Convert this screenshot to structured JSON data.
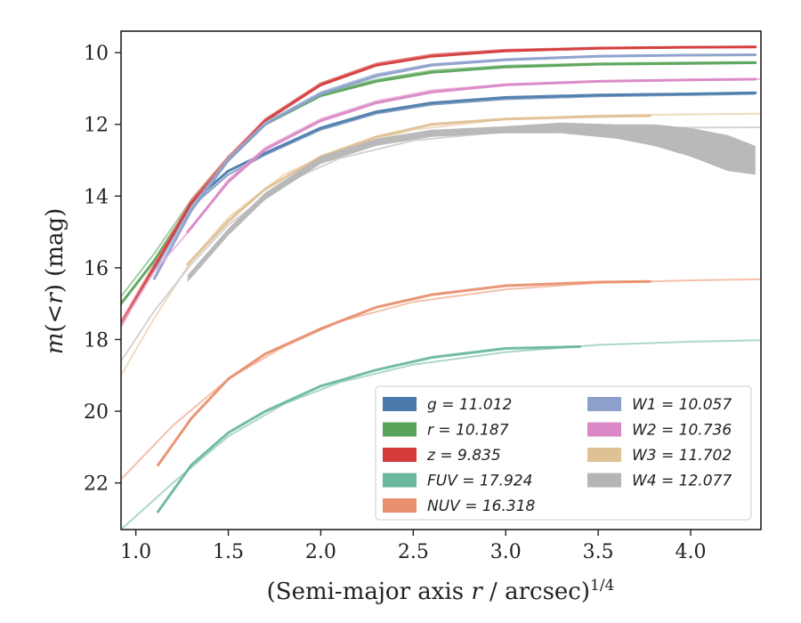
{
  "chart_data": {
    "type": "line",
    "xlabel": "(Semi-major axis r / arcsec)^1/4",
    "ylabel": "m(<r) (mag)",
    "xlim": [
      0.92,
      4.38
    ],
    "ylim": [
      23.3,
      9.4
    ],
    "y_inverted": true,
    "x_ticks": [
      "1.0",
      "1.5",
      "2.0",
      "2.5",
      "3.0",
      "3.5",
      "4.0"
    ],
    "y_ticks": [
      "10",
      "12",
      "14",
      "16",
      "18",
      "20",
      "22"
    ],
    "legend_location": "lower right",
    "legend_columns": 2,
    "series": [
      {
        "name": "g = 11.012",
        "color": "#4c7bab",
        "band_color": "#4c7bab",
        "fit_color": "#6f93bd",
        "x": [
          1.1,
          1.3,
          1.5,
          1.7,
          2.0,
          2.3,
          2.6,
          3.0,
          3.5,
          4.0,
          4.35
        ],
        "y": [
          16.0,
          14.2,
          13.3,
          12.8,
          12.1,
          11.65,
          11.4,
          11.25,
          11.18,
          11.15,
          11.12
        ],
        "fit_y": [
          16.1,
          14.3,
          13.4,
          12.85,
          12.15,
          11.7,
          11.45,
          11.3,
          11.22,
          11.18,
          11.15
        ]
      },
      {
        "name": "r = 10.187",
        "color": "#5aa35a",
        "band_color": "#5aa35a",
        "fit_color": "#8fc48f",
        "x": [
          0.92,
          1.1,
          1.3,
          1.5,
          1.7,
          2.0,
          2.3,
          2.6,
          3.0,
          3.5,
          4.0,
          4.35
        ],
        "y": [
          17.0,
          15.8,
          14.2,
          13.0,
          12.0,
          11.2,
          10.8,
          10.55,
          10.4,
          10.32,
          10.3,
          10.28
        ],
        "fit_y": [
          16.8,
          15.6,
          14.1,
          12.9,
          11.95,
          11.15,
          10.75,
          10.5,
          10.36,
          10.3,
          10.27,
          10.26
        ]
      },
      {
        "name": "z = 9.835",
        "color": "#d33b3b",
        "band_color": "#d33b3b",
        "fit_color": "#e27373",
        "x": [
          0.92,
          1.1,
          1.3,
          1.5,
          1.7,
          2.0,
          2.3,
          2.6,
          3.0,
          3.5,
          4.0,
          4.35
        ],
        "y": [
          17.6,
          16.0,
          14.2,
          13.0,
          11.9,
          10.9,
          10.35,
          10.1,
          9.95,
          9.88,
          9.85,
          9.84
        ],
        "fit_y": [
          17.5,
          15.9,
          14.1,
          12.9,
          11.85,
          10.85,
          10.3,
          10.05,
          9.92,
          9.86,
          9.84,
          9.83
        ]
      },
      {
        "name": "FUV = 17.924",
        "color": "#6cb89f",
        "band_color": "#6cb89f",
        "fit_color": "#9fd0c0",
        "x": [
          1.12,
          1.3,
          1.5,
          1.7,
          2.0,
          2.3,
          2.6,
          3.0,
          3.4
        ],
        "y": [
          22.8,
          21.5,
          20.6,
          20.0,
          19.3,
          18.85,
          18.5,
          18.25,
          18.2
        ],
        "fit_x": [
          0.92,
          1.2,
          1.5,
          1.8,
          2.1,
          2.5,
          3.0,
          3.5,
          4.0,
          4.38
        ],
        "fit_y": [
          23.3,
          22.0,
          20.7,
          19.8,
          19.2,
          18.7,
          18.35,
          18.15,
          18.06,
          18.02
        ]
      },
      {
        "name": "NUV = 16.318",
        "color": "#e8906f",
        "band_color": "#e8906f",
        "fit_color": "#f2b59b",
        "x": [
          1.12,
          1.3,
          1.5,
          1.7,
          2.0,
          2.3,
          2.6,
          3.0,
          3.5,
          3.78
        ],
        "y": [
          21.5,
          20.2,
          19.1,
          18.4,
          17.7,
          17.1,
          16.75,
          16.5,
          16.4,
          16.38
        ],
        "fit_x": [
          0.92,
          1.2,
          1.5,
          1.8,
          2.1,
          2.5,
          3.0,
          3.5,
          4.0,
          4.38
        ],
        "fit_y": [
          21.9,
          20.4,
          19.1,
          18.2,
          17.5,
          16.95,
          16.6,
          16.42,
          16.35,
          16.32
        ]
      },
      {
        "name": "W1 = 10.057",
        "color": "#8da0cb",
        "band_color": "#8da0cb",
        "fit_color": "#a8b7d8",
        "x": [
          1.1,
          1.3,
          1.5,
          1.7,
          2.0,
          2.3,
          2.6,
          3.0,
          3.5,
          4.0,
          4.35
        ],
        "y": [
          16.3,
          14.4,
          13.0,
          12.0,
          11.15,
          10.65,
          10.35,
          10.2,
          10.1,
          10.07,
          10.06
        ],
        "fit_y": [
          16.1,
          14.3,
          12.95,
          11.95,
          11.1,
          10.6,
          10.32,
          10.18,
          10.09,
          10.06,
          10.05
        ]
      },
      {
        "name": "W2 = 10.736",
        "color": "#da88c6",
        "band_color": "#da88c6",
        "fit_color": "#e7aed8",
        "x": [
          1.28,
          1.5,
          1.7,
          2.0,
          2.3,
          2.6,
          3.0,
          3.5,
          4.0,
          4.35
        ],
        "y": [
          15.0,
          13.6,
          12.7,
          11.9,
          11.4,
          11.1,
          10.9,
          10.8,
          10.76,
          10.74
        ],
        "fit_x": [
          0.92,
          1.1,
          1.3,
          1.5,
          1.7,
          2.0,
          2.3,
          2.6,
          3.0,
          3.5,
          4.0,
          4.38
        ],
        "fit_y": [
          17.6,
          16.1,
          14.9,
          13.55,
          12.65,
          11.85,
          11.35,
          11.05,
          10.88,
          10.79,
          10.75,
          10.74
        ]
      },
      {
        "name": "W3 = 11.702",
        "color": "#e0c095",
        "band_color": "#e0c095",
        "fit_color": "#ecd5b5",
        "x": [
          1.28,
          1.5,
          1.7,
          2.0,
          2.3,
          2.6,
          3.0,
          3.5,
          3.78
        ],
        "y": [
          15.9,
          14.7,
          13.8,
          12.9,
          12.35,
          12.0,
          11.85,
          11.78,
          11.76
        ],
        "fit_x": [
          0.92,
          1.1,
          1.3,
          1.5,
          1.8,
          2.1,
          2.5,
          3.0,
          3.5,
          4.0,
          4.38
        ],
        "fit_y": [
          19.0,
          17.4,
          15.8,
          14.6,
          13.4,
          12.7,
          12.15,
          11.85,
          11.75,
          11.72,
          11.7
        ]
      },
      {
        "name": "W4 = 12.077",
        "color": "#b5b5b5",
        "band_color": "#b5b5b5",
        "fit_color": "#cccccc",
        "x": [
          1.28,
          1.5,
          1.7,
          2.0,
          2.3,
          2.6,
          3.0,
          3.3,
          3.6,
          3.8,
          4.0,
          4.2,
          4.35
        ],
        "y": [
          16.3,
          15.0,
          14.0,
          13.0,
          12.5,
          12.25,
          12.15,
          12.1,
          12.2,
          12.3,
          12.5,
          12.8,
          13.0
        ],
        "band_width": [
          0.1,
          0.1,
          0.1,
          0.1,
          0.1,
          0.1,
          0.1,
          0.15,
          0.2,
          0.3,
          0.4,
          0.5,
          0.4
        ],
        "fit_x": [
          0.92,
          1.1,
          1.3,
          1.5,
          1.8,
          2.1,
          2.5,
          3.0,
          3.5,
          4.0,
          4.38
        ],
        "fit_y": [
          18.6,
          17.2,
          15.9,
          14.8,
          13.65,
          12.95,
          12.45,
          12.2,
          12.12,
          12.09,
          12.08
        ]
      }
    ]
  }
}
